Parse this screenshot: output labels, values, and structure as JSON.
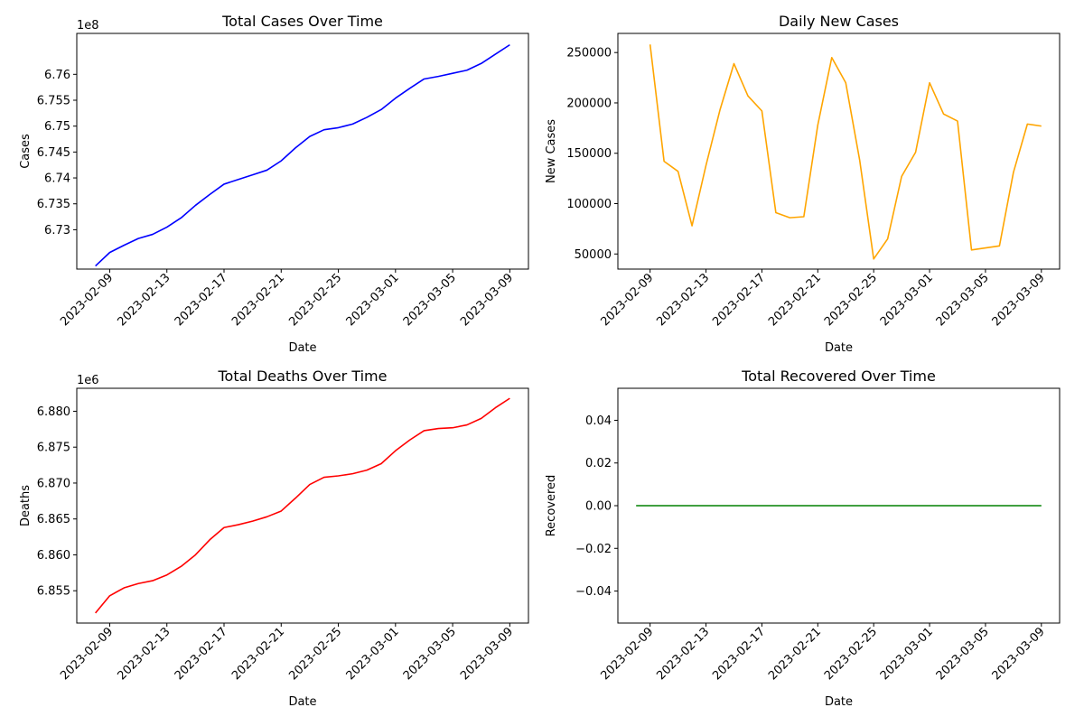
{
  "dates": [
    "2023-02-08",
    "2023-02-09",
    "2023-02-10",
    "2023-02-11",
    "2023-02-12",
    "2023-02-13",
    "2023-02-14",
    "2023-02-15",
    "2023-02-16",
    "2023-02-17",
    "2023-02-18",
    "2023-02-19",
    "2023-02-20",
    "2023-02-21",
    "2023-02-22",
    "2023-02-23",
    "2023-02-24",
    "2023-02-25",
    "2023-02-26",
    "2023-02-27",
    "2023-02-28",
    "2023-03-01",
    "2023-03-02",
    "2023-03-03",
    "2023-03-04",
    "2023-03-05",
    "2023-03-06",
    "2023-03-07",
    "2023-03-08",
    "2023-03-09"
  ],
  "chart_data": [
    {
      "id": "total_cases",
      "type": "line",
      "title": "Total Cases Over Time",
      "xlabel": "Date",
      "ylabel": "Cases",
      "color": "#0000ff",
      "offset_label": "1e8",
      "ylim": [
        672.24,
        676.79
      ],
      "yticks": [
        673.0,
        673.5,
        674.0,
        674.5,
        675.0,
        675.5,
        676.0
      ],
      "ytick_labels": [
        "6.73",
        "6.735",
        "6.74",
        "6.745",
        "6.75",
        "6.755",
        "6.76"
      ],
      "xticks": [
        "2023-02-09",
        "2023-02-13",
        "2023-02-17",
        "2023-02-21",
        "2023-02-25",
        "2023-03-01",
        "2023-03-05",
        "2023-03-09"
      ],
      "values": [
        672.3,
        672.56,
        672.7,
        672.83,
        672.91,
        673.05,
        673.23,
        673.47,
        673.68,
        673.88,
        673.97,
        674.06,
        674.15,
        674.33,
        674.58,
        674.8,
        674.93,
        674.97,
        675.04,
        675.17,
        675.32,
        675.54,
        675.73,
        675.91,
        675.96,
        676.02,
        676.08,
        676.21,
        676.39,
        676.57
      ],
      "units_note": "values in units of 1e6 cases"
    },
    {
      "id": "daily_new_cases",
      "type": "line",
      "title": "Daily New Cases",
      "xlabel": "Date",
      "ylabel": "New Cases",
      "color": "#ffa500",
      "offset_label": "",
      "ylim": [
        35000,
        269000
      ],
      "yticks": [
        50000,
        100000,
        150000,
        200000,
        250000
      ],
      "ytick_labels": [
        "50000",
        "100000",
        "150000",
        "200000",
        "250000"
      ],
      "xticks": [
        "2023-02-09",
        "2023-02-13",
        "2023-02-17",
        "2023-02-21",
        "2023-02-25",
        "2023-03-01",
        "2023-03-05",
        "2023-03-09"
      ],
      "values": [
        258000,
        142000,
        132000,
        78000,
        138000,
        193000,
        239000,
        207000,
        192000,
        91000,
        86000,
        87000,
        178000,
        245000,
        220000,
        143000,
        45000,
        65000,
        127000,
        151000,
        220000,
        189000,
        182000,
        54000,
        56000,
        58000,
        131000,
        179000,
        177000
      ],
      "x_start_index": 1
    },
    {
      "id": "total_deaths",
      "type": "line",
      "title": "Total Deaths Over Time",
      "xlabel": "Date",
      "ylabel": "Deaths",
      "color": "#ff0000",
      "offset_label": "1e6",
      "ylim": [
        6.8505,
        6.8832
      ],
      "yticks": [
        6.855,
        6.86,
        6.865,
        6.87,
        6.875,
        6.88
      ],
      "ytick_labels": [
        "6.855",
        "6.860",
        "6.865",
        "6.870",
        "6.875",
        "6.880"
      ],
      "xticks": [
        "2023-02-09",
        "2023-02-13",
        "2023-02-17",
        "2023-02-21",
        "2023-02-25",
        "2023-03-01",
        "2023-03-05",
        "2023-03-09"
      ],
      "values": [
        6.8519,
        6.8543,
        6.8554,
        6.856,
        6.8564,
        6.8572,
        6.8584,
        6.86,
        6.8621,
        6.8638,
        6.8642,
        6.8647,
        6.8653,
        6.8661,
        6.8679,
        6.8698,
        6.8708,
        6.871,
        6.8713,
        6.8718,
        6.8727,
        6.8745,
        6.876,
        6.8773,
        6.8776,
        6.8777,
        6.8781,
        6.879,
        6.8805,
        6.8818
      ]
    },
    {
      "id": "total_recovered",
      "type": "line",
      "title": "Total Recovered Over Time",
      "xlabel": "Date",
      "ylabel": "Recovered",
      "color": "#008000",
      "offset_label": "",
      "ylim": [
        -0.055,
        0.055
      ],
      "yticks": [
        -0.04,
        -0.02,
        0.0,
        0.02,
        0.04
      ],
      "ytick_labels": [
        "−0.04",
        "−0.02",
        "0.00",
        "0.02",
        "0.04"
      ],
      "xticks": [
        "2023-02-09",
        "2023-02-13",
        "2023-02-17",
        "2023-02-21",
        "2023-02-25",
        "2023-03-01",
        "2023-03-05",
        "2023-03-09"
      ],
      "values": [
        0,
        0,
        0,
        0,
        0,
        0,
        0,
        0,
        0,
        0,
        0,
        0,
        0,
        0,
        0,
        0,
        0,
        0,
        0,
        0,
        0,
        0,
        0,
        0,
        0,
        0,
        0,
        0,
        0,
        0
      ]
    }
  ]
}
